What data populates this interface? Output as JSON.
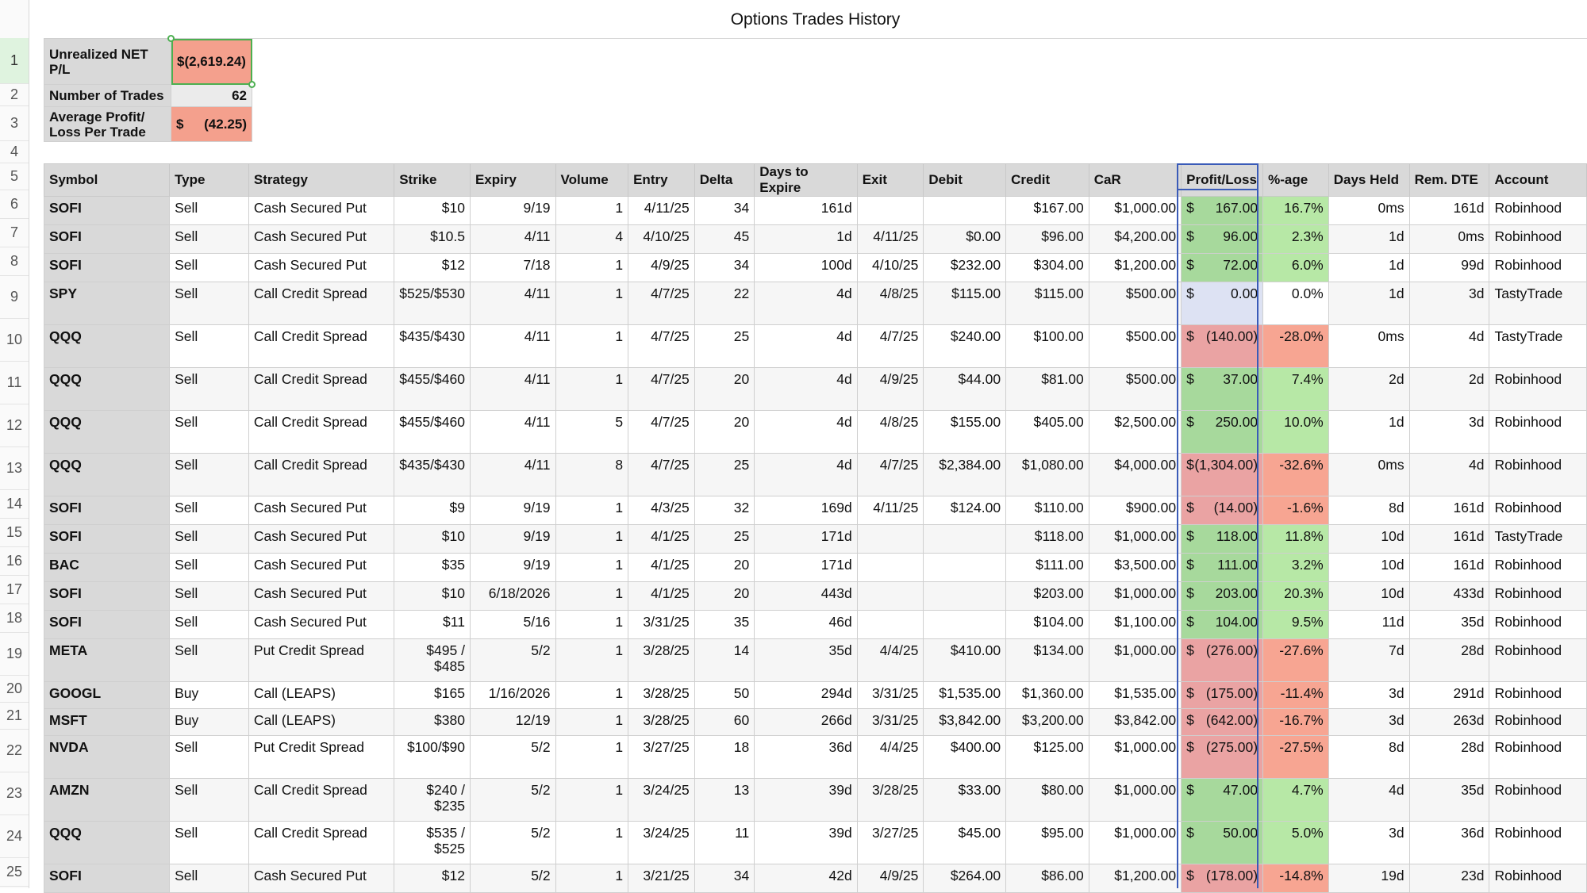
{
  "title": "Options Trades History",
  "row_numbers": [
    "1",
    "2",
    "3",
    "4",
    "5",
    "6",
    "7",
    "8",
    "9",
    "10",
    "11",
    "12",
    "13",
    "14",
    "15",
    "16",
    "17",
    "18",
    "19",
    "20",
    "21",
    "22",
    "23",
    "24",
    "25"
  ],
  "summary": {
    "net_label": "Unrealized NET P/L",
    "net_value": "$(2,619.24)",
    "trades_label": "Number of Trades",
    "trades_value": "62",
    "avg_label": "Average Profit/ Loss Per Trade",
    "avg_currency": "$",
    "avg_value": "(42.25)"
  },
  "columns": [
    "Symbol",
    "Type",
    "Strategy",
    "Strike",
    "Expiry",
    "Volume",
    "Entry",
    "Delta",
    "Days to Expire",
    "Exit",
    "Debit",
    "Credit",
    "CaR",
    "Profit/Loss",
    "%-age",
    "Days Held",
    "Rem. DTE",
    "Account"
  ],
  "colors": {
    "positive": "#a7d99c",
    "negative": "#eaa3a3",
    "zero": "#dde2f3",
    "header": "#d9d9d9",
    "selection": "#3a5bb8"
  },
  "rows": [
    {
      "symbol": "SOFI",
      "type": "Sell",
      "strategy": "Cash Secured Put",
      "strike": "$10",
      "expiry": "9/19",
      "volume": "1",
      "entry": "4/11/25",
      "delta": "34",
      "dte": "161d",
      "exit": "",
      "debit": "",
      "credit": "$167.00",
      "car": "$1,000.00",
      "pl": "167.00",
      "pct": "16.7%",
      "held": "0ms",
      "rem": "161d",
      "account": "Robinhood",
      "sign": "pos"
    },
    {
      "symbol": "SOFI",
      "type": "Sell",
      "strategy": "Cash Secured Put",
      "strike": "$10.5",
      "expiry": "4/11",
      "volume": "4",
      "entry": "4/10/25",
      "delta": "45",
      "dte": "1d",
      "exit": "4/11/25",
      "debit": "$0.00",
      "credit": "$96.00",
      "car": "$4,200.00",
      "pl": "96.00",
      "pct": "2.3%",
      "held": "1d",
      "rem": "0ms",
      "account": "Robinhood",
      "sign": "pos"
    },
    {
      "symbol": "SOFI",
      "type": "Sell",
      "strategy": "Cash Secured Put",
      "strike": "$12",
      "expiry": "7/18",
      "volume": "1",
      "entry": "4/9/25",
      "delta": "34",
      "dte": "100d",
      "exit": "4/10/25",
      "debit": "$232.00",
      "credit": "$304.00",
      "car": "$1,200.00",
      "pl": "72.00",
      "pct": "6.0%",
      "held": "1d",
      "rem": "99d",
      "account": "Robinhood",
      "sign": "pos"
    },
    {
      "symbol": "SPY",
      "type": "Sell",
      "strategy": "Call Credit Spread",
      "strike": "$525/$530",
      "expiry": "4/11",
      "volume": "1",
      "entry": "4/7/25",
      "delta": "22",
      "dte": "4d",
      "exit": "4/8/25",
      "debit": "$115.00",
      "credit": "$115.00",
      "car": "$500.00",
      "pl": "0.00",
      "pct": "0.0%",
      "held": "1d",
      "rem": "3d",
      "account": "TastyTrade",
      "sign": "zero"
    },
    {
      "symbol": "QQQ",
      "type": "Sell",
      "strategy": "Call Credit Spread",
      "strike": "$435/$430",
      "expiry": "4/11",
      "volume": "1",
      "entry": "4/7/25",
      "delta": "25",
      "dte": "4d",
      "exit": "4/7/25",
      "debit": "$240.00",
      "credit": "$100.00",
      "car": "$500.00",
      "pl": "(140.00)",
      "pct": "-28.0%",
      "held": "0ms",
      "rem": "4d",
      "account": "TastyTrade",
      "sign": "neg"
    },
    {
      "symbol": "QQQ",
      "type": "Sell",
      "strategy": "Call Credit Spread",
      "strike": "$455/$460",
      "expiry": "4/11",
      "volume": "1",
      "entry": "4/7/25",
      "delta": "20",
      "dte": "4d",
      "exit": "4/9/25",
      "debit": "$44.00",
      "credit": "$81.00",
      "car": "$500.00",
      "pl": "37.00",
      "pct": "7.4%",
      "held": "2d",
      "rem": "2d",
      "account": "Robinhood",
      "sign": "pos"
    },
    {
      "symbol": "QQQ",
      "type": "Sell",
      "strategy": "Call Credit Spread",
      "strike": "$455/$460",
      "expiry": "4/11",
      "volume": "5",
      "entry": "4/7/25",
      "delta": "20",
      "dte": "4d",
      "exit": "4/8/25",
      "debit": "$155.00",
      "credit": "$405.00",
      "car": "$2,500.00",
      "pl": "250.00",
      "pct": "10.0%",
      "held": "1d",
      "rem": "3d",
      "account": "Robinhood",
      "sign": "pos"
    },
    {
      "symbol": "QQQ",
      "type": "Sell",
      "strategy": "Call Credit Spread",
      "strike": "$435/$430",
      "expiry": "4/11",
      "volume": "8",
      "entry": "4/7/25",
      "delta": "25",
      "dte": "4d",
      "exit": "4/7/25",
      "debit": "$2,384.00",
      "credit": "$1,080.00",
      "car": "$4,000.00",
      "pl": "(1,304.00)",
      "pct": "-32.6%",
      "held": "0ms",
      "rem": "4d",
      "account": "Robinhood",
      "sign": "neg"
    },
    {
      "symbol": "SOFI",
      "type": "Sell",
      "strategy": "Cash Secured Put",
      "strike": "$9",
      "expiry": "9/19",
      "volume": "1",
      "entry": "4/3/25",
      "delta": "32",
      "dte": "169d",
      "exit": "4/11/25",
      "debit": "$124.00",
      "credit": "$110.00",
      "car": "$900.00",
      "pl": "(14.00)",
      "pct": "-1.6%",
      "held": "8d",
      "rem": "161d",
      "account": "Robinhood",
      "sign": "neg"
    },
    {
      "symbol": "SOFI",
      "type": "Sell",
      "strategy": "Cash Secured Put",
      "strike": "$10",
      "expiry": "9/19",
      "volume": "1",
      "entry": "4/1/25",
      "delta": "25",
      "dte": "171d",
      "exit": "",
      "debit": "",
      "credit": "$118.00",
      "car": "$1,000.00",
      "pl": "118.00",
      "pct": "11.8%",
      "held": "10d",
      "rem": "161d",
      "account": "TastyTrade",
      "sign": "pos"
    },
    {
      "symbol": "BAC",
      "type": "Sell",
      "strategy": "Cash Secured Put",
      "strike": "$35",
      "expiry": "9/19",
      "volume": "1",
      "entry": "4/1/25",
      "delta": "20",
      "dte": "171d",
      "exit": "",
      "debit": "",
      "credit": "$111.00",
      "car": "$3,500.00",
      "pl": "111.00",
      "pct": "3.2%",
      "held": "10d",
      "rem": "161d",
      "account": "Robinhood",
      "sign": "pos"
    },
    {
      "symbol": "SOFI",
      "type": "Sell",
      "strategy": "Cash Secured Put",
      "strike": "$10",
      "expiry": "6/18/2026",
      "volume": "1",
      "entry": "4/1/25",
      "delta": "20",
      "dte": "443d",
      "exit": "",
      "debit": "",
      "credit": "$203.00",
      "car": "$1,000.00",
      "pl": "203.00",
      "pct": "20.3%",
      "held": "10d",
      "rem": "433d",
      "account": "Robinhood",
      "sign": "pos"
    },
    {
      "symbol": "SOFI",
      "type": "Sell",
      "strategy": "Cash Secured Put",
      "strike": "$11",
      "expiry": "5/16",
      "volume": "1",
      "entry": "3/31/25",
      "delta": "35",
      "dte": "46d",
      "exit": "",
      "debit": "",
      "credit": "$104.00",
      "car": "$1,100.00",
      "pl": "104.00",
      "pct": "9.5%",
      "held": "11d",
      "rem": "35d",
      "account": "Robinhood",
      "sign": "pos"
    },
    {
      "symbol": "META",
      "type": "Sell",
      "strategy": "Put Credit Spread",
      "strike": "$495 / $485",
      "expiry": "5/2",
      "volume": "1",
      "entry": "3/28/25",
      "delta": "14",
      "dte": "35d",
      "exit": "4/4/25",
      "debit": "$410.00",
      "credit": "$134.00",
      "car": "$1,000.00",
      "pl": "(276.00)",
      "pct": "-27.6%",
      "held": "7d",
      "rem": "28d",
      "account": "Robinhood",
      "sign": "neg"
    },
    {
      "symbol": "GOOGL",
      "type": "Buy",
      "strategy": "Call (LEAPS)",
      "strike": "$165",
      "expiry": "1/16/2026",
      "volume": "1",
      "entry": "3/28/25",
      "delta": "50",
      "dte": "294d",
      "exit": "3/31/25",
      "debit": "$1,535.00",
      "credit": "$1,360.00",
      "car": "$1,535.00",
      "pl": "(175.00)",
      "pct": "-11.4%",
      "held": "3d",
      "rem": "291d",
      "account": "Robinhood",
      "sign": "neg"
    },
    {
      "symbol": "MSFT",
      "type": "Buy",
      "strategy": "Call (LEAPS)",
      "strike": "$380",
      "expiry": "12/19",
      "volume": "1",
      "entry": "3/28/25",
      "delta": "60",
      "dte": "266d",
      "exit": "3/31/25",
      "debit": "$3,842.00",
      "credit": "$3,200.00",
      "car": "$3,842.00",
      "pl": "(642.00)",
      "pct": "-16.7%",
      "held": "3d",
      "rem": "263d",
      "account": "Robinhood",
      "sign": "neg"
    },
    {
      "symbol": "NVDA",
      "type": "Sell",
      "strategy": "Put Credit Spread",
      "strike": "$100/$90",
      "expiry": "5/2",
      "volume": "1",
      "entry": "3/27/25",
      "delta": "18",
      "dte": "36d",
      "exit": "4/4/25",
      "debit": "$400.00",
      "credit": "$125.00",
      "car": "$1,000.00",
      "pl": "(275.00)",
      "pct": "-27.5%",
      "held": "8d",
      "rem": "28d",
      "account": "Robinhood",
      "sign": "neg"
    },
    {
      "symbol": "AMZN",
      "type": "Sell",
      "strategy": "Call Credit Spread",
      "strike": "$240 / $235",
      "expiry": "5/2",
      "volume": "1",
      "entry": "3/24/25",
      "delta": "13",
      "dte": "39d",
      "exit": "3/28/25",
      "debit": "$33.00",
      "credit": "$80.00",
      "car": "$1,000.00",
      "pl": "47.00",
      "pct": "4.7%",
      "held": "4d",
      "rem": "35d",
      "account": "Robinhood",
      "sign": "pos"
    },
    {
      "symbol": "QQQ",
      "type": "Sell",
      "strategy": "Call Credit Spread",
      "strike": "$535 / $525",
      "expiry": "5/2",
      "volume": "1",
      "entry": "3/24/25",
      "delta": "11",
      "dte": "39d",
      "exit": "3/27/25",
      "debit": "$45.00",
      "credit": "$95.00",
      "car": "$1,000.00",
      "pl": "50.00",
      "pct": "5.0%",
      "held": "3d",
      "rem": "36d",
      "account": "Robinhood",
      "sign": "pos"
    },
    {
      "symbol": "SOFI",
      "type": "Sell",
      "strategy": "Cash Secured Put",
      "strike": "$12",
      "expiry": "5/2",
      "volume": "1",
      "entry": "3/21/25",
      "delta": "34",
      "dte": "42d",
      "exit": "4/9/25",
      "debit": "$264.00",
      "credit": "$86.00",
      "car": "$1,200.00",
      "pl": "(178.00)",
      "pct": "-14.8%",
      "held": "19d",
      "rem": "23d",
      "account": "Robinhood",
      "sign": "neg"
    }
  ]
}
